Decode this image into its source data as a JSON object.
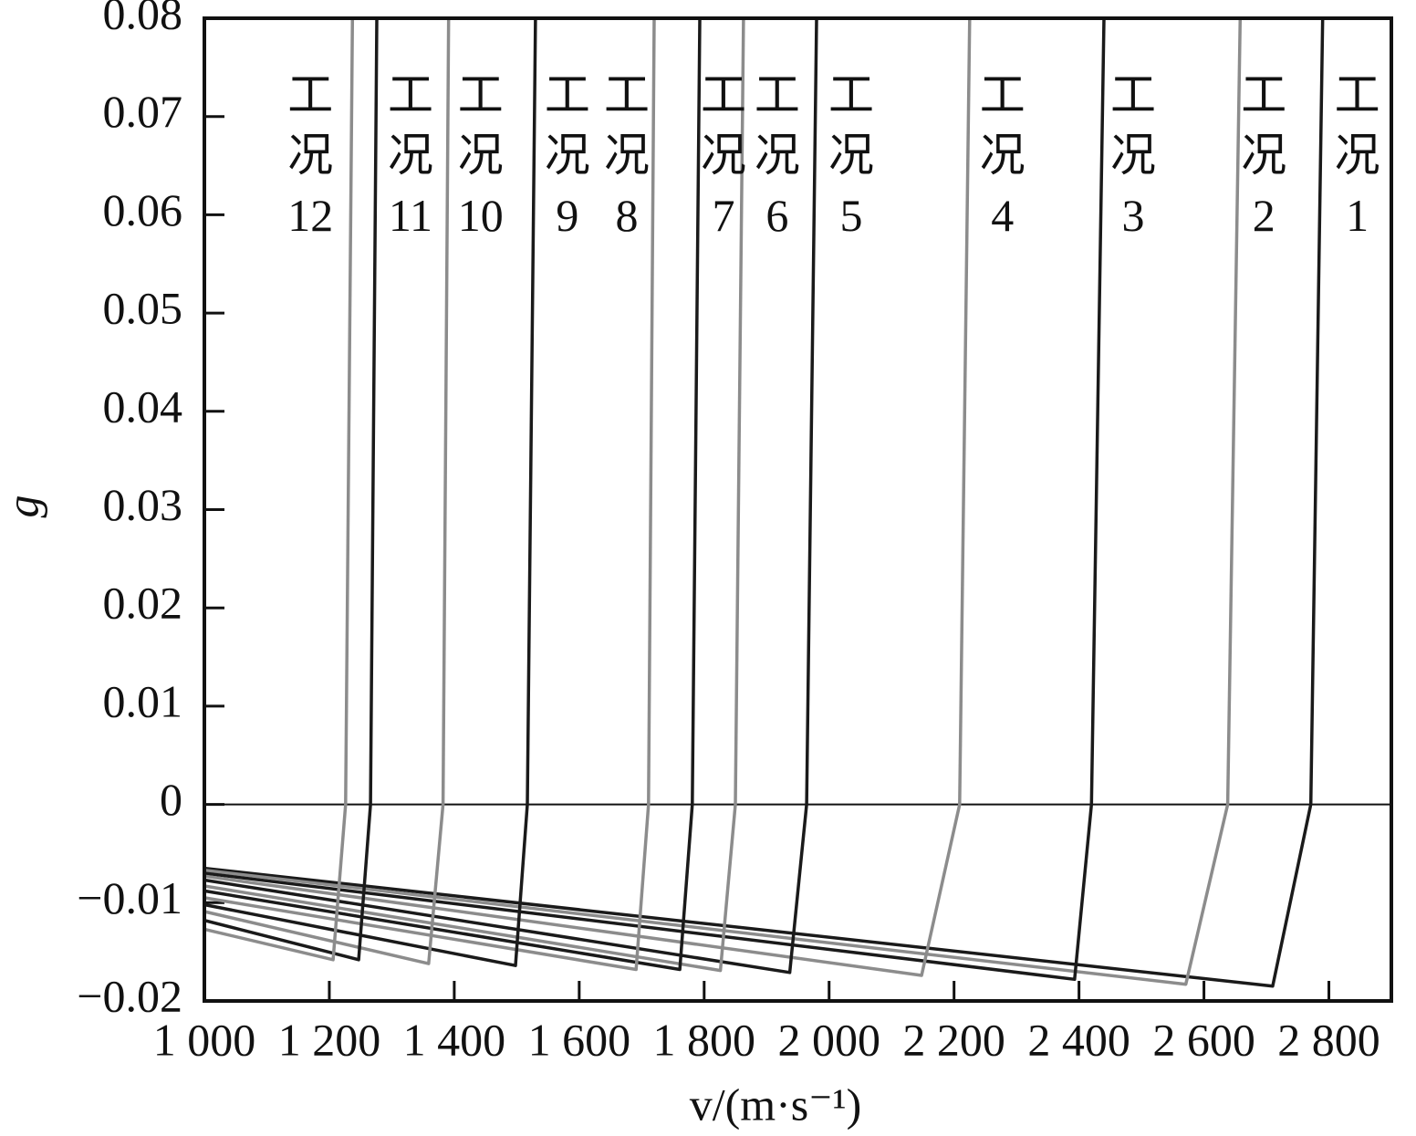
{
  "chart_data": {
    "type": "line",
    "x_label": "v/(m·s⁻¹)",
    "y_label": "g",
    "xlim": [
      1000,
      2900
    ],
    "ylim": [
      -0.02,
      0.08
    ],
    "xticks": [
      {
        "value": 1000,
        "label": "1 000"
      },
      {
        "value": 1200,
        "label": "1 200"
      },
      {
        "value": 1400,
        "label": "1 400"
      },
      {
        "value": 1600,
        "label": "1 600"
      },
      {
        "value": 1800,
        "label": "1 800"
      },
      {
        "value": 2000,
        "label": "2 000"
      },
      {
        "value": 2200,
        "label": "2 200"
      },
      {
        "value": 2400,
        "label": "2 400"
      },
      {
        "value": 2600,
        "label": "2 600"
      },
      {
        "value": 2800,
        "label": "2 800"
      }
    ],
    "yticks": [
      {
        "value": -0.02,
        "label": "−0.02"
      },
      {
        "value": -0.01,
        "label": "−0.01"
      },
      0,
      0.01,
      0.02,
      0.03,
      0.04,
      0.05,
      0.06,
      0.07,
      0.08
    ],
    "series": [
      {
        "name": "工况1",
        "color": "#1a1a1a",
        "x": [
          1000,
          2710,
          2771,
          2790
        ],
        "values": [
          -0.0065,
          -0.0185,
          0,
          0.08
        ]
      },
      {
        "name": "工况2",
        "color": "#8c8c8c",
        "x": [
          1000,
          2571,
          2638,
          2658
        ],
        "values": [
          -0.0067,
          -0.0183,
          0,
          0.08
        ]
      },
      {
        "name": "工况3",
        "color": "#1a1a1a",
        "x": [
          1000,
          2393,
          2420,
          2440
        ],
        "values": [
          -0.007,
          -0.0178,
          0,
          0.08
        ]
      },
      {
        "name": "工况4",
        "color": "#8c8c8c",
        "x": [
          1000,
          2148,
          2209,
          2225
        ],
        "values": [
          -0.0073,
          -0.0174,
          0,
          0.08
        ]
      },
      {
        "name": "工况5",
        "color": "#1a1a1a",
        "x": [
          1000,
          1937,
          1964,
          1980
        ],
        "values": [
          -0.0077,
          -0.0171,
          0,
          0.08
        ]
      },
      {
        "name": "工况6",
        "color": "#8c8c8c",
        "x": [
          1000,
          1826,
          1850,
          1863
        ],
        "values": [
          -0.0083,
          -0.0169,
          0,
          0.08
        ]
      },
      {
        "name": "工况7",
        "color": "#1a1a1a",
        "x": [
          1000,
          1761,
          1781,
          1793
        ],
        "values": [
          -0.0088,
          -0.0168,
          0,
          0.08
        ]
      },
      {
        "name": "工况8",
        "color": "#8c8c8c",
        "x": [
          1000,
          1691,
          1711,
          1720
        ],
        "values": [
          -0.0095,
          -0.0168,
          0,
          0.08
        ]
      },
      {
        "name": "工况9",
        "color": "#1a1a1a",
        "x": [
          1000,
          1498,
          1517,
          1530
        ],
        "values": [
          -0.0102,
          -0.0164,
          0,
          0.08
        ]
      },
      {
        "name": "工况10",
        "color": "#8c8c8c",
        "x": [
          1000,
          1359,
          1382,
          1391
        ],
        "values": [
          -0.0109,
          -0.0162,
          0,
          0.08
        ]
      },
      {
        "name": "工况11",
        "color": "#1a1a1a",
        "x": [
          1000,
          1247,
          1266,
          1276
        ],
        "values": [
          -0.0118,
          -0.0158,
          0,
          0.08
        ]
      },
      {
        "name": "工况12",
        "color": "#8c8c8c",
        "x": [
          1000,
          1206,
          1226,
          1237
        ],
        "values": [
          -0.0127,
          -0.0158,
          0,
          0.08
        ]
      }
    ]
  }
}
